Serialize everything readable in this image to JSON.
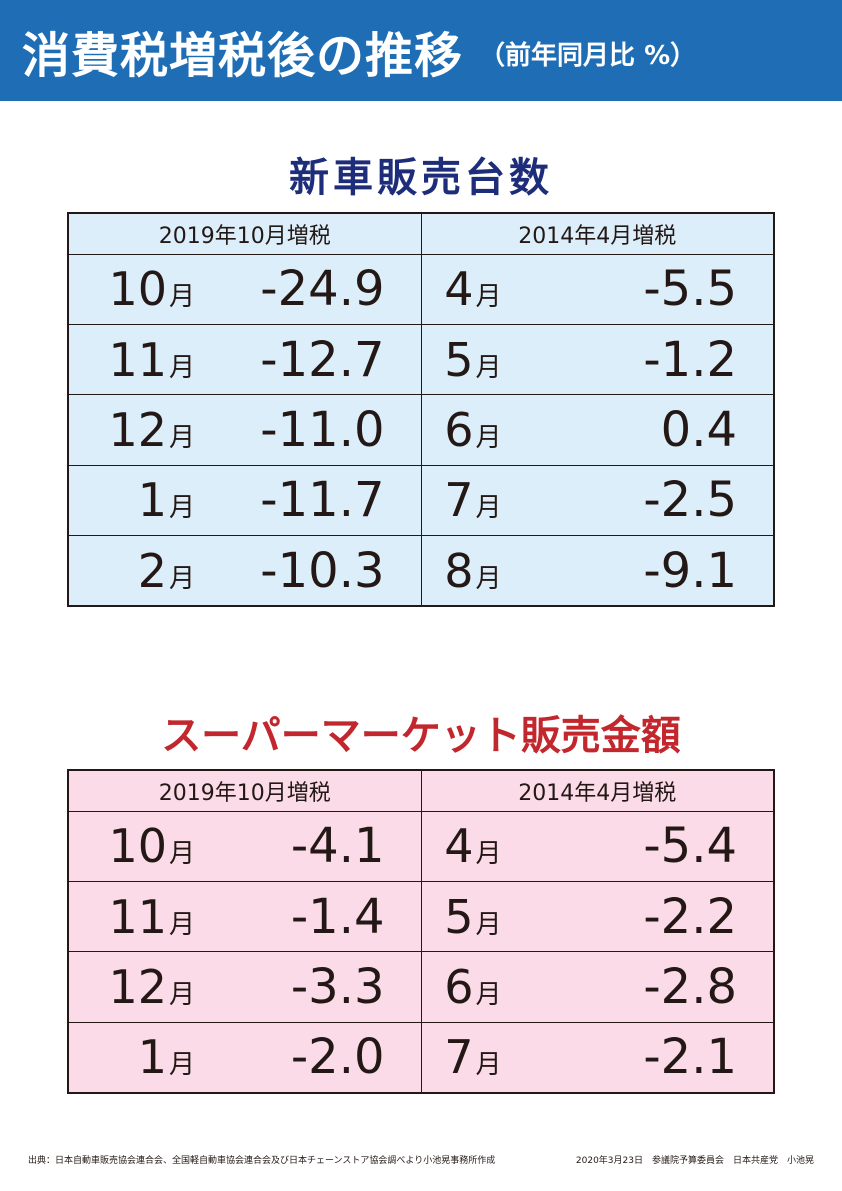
{
  "header": {
    "title": "消費税増税後の推移",
    "subtitle": "（前年同月比 %）",
    "background": "#1f6eb5"
  },
  "car_sales": {
    "title": "新車販売台数",
    "col_left": "2019年10月増税",
    "col_right": "2014年4月増税",
    "rows": [
      {
        "m1": "10",
        "v1": "-24.9",
        "m2": "4",
        "v2": "-5.5"
      },
      {
        "m1": "11",
        "v1": "-12.7",
        "m2": "5",
        "v2": "-1.2"
      },
      {
        "m1": "12",
        "v1": "-11.0",
        "m2": "6",
        "v2": "0.4"
      },
      {
        "m1": "1",
        "v1": "-11.7",
        "m2": "7",
        "v2": "-2.5"
      },
      {
        "m1": "2",
        "v1": "-10.3",
        "m2": "8",
        "v2": "-9.1"
      }
    ],
    "bg": "#dceef9",
    "title_color": "#1d2d7a"
  },
  "supermarket": {
    "title": "スーパーマーケット販売金額",
    "col_left": "2019年10月増税",
    "col_right": "2014年4月増税",
    "rows": [
      {
        "m1": "10",
        "v1": "-4.1",
        "m2": "4",
        "v2": "-5.4"
      },
      {
        "m1": "11",
        "v1": "-1.4",
        "m2": "5",
        "v2": "-2.2"
      },
      {
        "m1": "12",
        "v1": "-3.3",
        "m2": "6",
        "v2": "-2.8"
      },
      {
        "m1": "1",
        "v1": "-2.0",
        "m2": "7",
        "v2": "-2.1"
      }
    ],
    "bg": "#fadbe7",
    "title_color": "#c1272d"
  },
  "month_unit": "月",
  "footer": {
    "source": "出典：日本自動車販売協会連合会、全国軽自動車協会連合会及び日本チェーンストア協会調べより小池晃事務所作成",
    "meta": "2020年3月23日　参議院予算委員会　日本共産党　小池晃"
  }
}
